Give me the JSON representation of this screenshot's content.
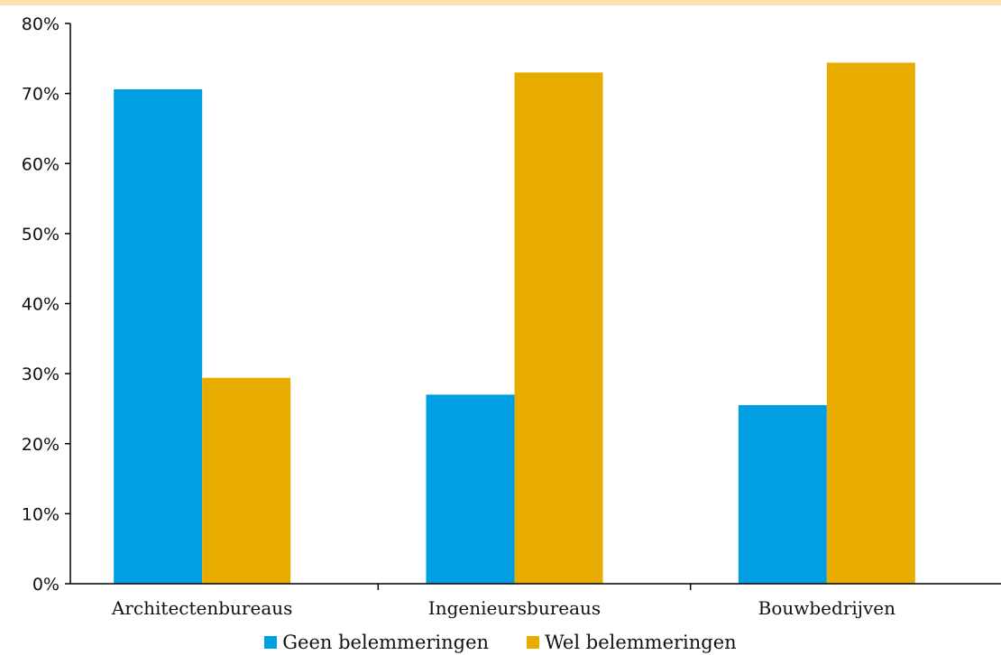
{
  "chart_data": {
    "type": "bar",
    "categories": [
      "Architectenbureaus",
      "Ingenieursbureaus",
      "Bouwbedrijven"
    ],
    "series": [
      {
        "name": "Geen belemmeringen",
        "color": "#009fe3",
        "values": [
          70.6,
          27.0,
          25.5
        ]
      },
      {
        "name": "Wel belemmeringen",
        "color": "#e8ac00",
        "values": [
          29.4,
          73.0,
          74.4
        ]
      }
    ],
    "ylim": [
      0,
      80
    ],
    "yticks": [
      "0%",
      "10%",
      "20%",
      "30%",
      "40%",
      "50%",
      "60%",
      "70%",
      "80%"
    ],
    "grid": false,
    "legend_position": "bottom"
  }
}
